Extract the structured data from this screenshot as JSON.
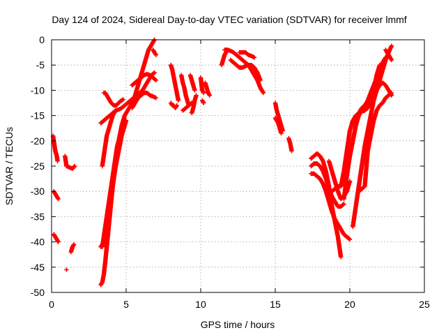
{
  "chart_data": {
    "type": "scatter",
    "title": "Day 124 of 2024, Sidereal Day-to-day VTEC variation (SDTVAR) for receiver lmmf",
    "xlabel": "GPS time / hours",
    "ylabel": "SDTVAR / TECUs",
    "xlim": [
      0,
      25
    ],
    "ylim": [
      -50,
      0
    ],
    "xticks": [
      0,
      5,
      10,
      15,
      20,
      25
    ],
    "yticks": [
      0,
      -5,
      -10,
      -15,
      -20,
      -25,
      -30,
      -35,
      -40,
      -45,
      -50
    ],
    "grid": true,
    "marker": "plus",
    "color": "#ff0000",
    "series": [
      {
        "name": "segment-01",
        "x": [
          0.1,
          0.15,
          0.2,
          0.25,
          0.3,
          0.35,
          0.4
        ],
        "y": [
          -19,
          -20,
          -21,
          -22,
          -22.5,
          -23,
          -24
        ]
      },
      {
        "name": "segment-02",
        "x": [
          0.15,
          0.25,
          0.35,
          0.45
        ],
        "y": [
          -30,
          -30.5,
          -31,
          -31.5
        ]
      },
      {
        "name": "segment-03",
        "x": [
          0.15,
          0.25,
          0.35,
          0.45
        ],
        "y": [
          -38.5,
          -39,
          -39.5,
          -40
        ]
      },
      {
        "name": "segment-04",
        "x": [
          0.9,
          1.0,
          1.4,
          1.55
        ],
        "y": [
          -23,
          -25,
          -25.5,
          -25
        ]
      },
      {
        "name": "segment-05",
        "x": [
          1.0
        ],
        "y": [
          -45.5
        ]
      },
      {
        "name": "segment-06",
        "x": [
          1.3,
          1.4,
          1.5
        ],
        "y": [
          -42,
          -41,
          -40.5
        ]
      },
      {
        "name": "segment-07",
        "x": [
          3.3,
          3.4,
          3.5,
          3.6,
          3.7,
          3.8,
          3.9,
          4.0,
          4.1,
          4.2,
          4.3,
          4.4,
          4.5,
          4.6,
          4.7,
          4.8,
          4.9,
          5.0,
          5.1,
          5.2,
          5.3,
          5.4,
          5.5,
          5.6,
          5.7,
          5.8,
          5.9,
          6.0,
          6.1,
          6.2,
          6.3,
          6.4,
          6.5,
          6.6,
          6.7,
          6.8,
          6.9
        ],
        "y": [
          -48.5,
          -48,
          -46.5,
          -44,
          -41,
          -38,
          -35,
          -32,
          -29,
          -26.5,
          -24,
          -22,
          -20,
          -18.5,
          -17,
          -16,
          -15,
          -14.5,
          -14,
          -13.5,
          -13,
          -12.5,
          -12,
          -11,
          -10,
          -9,
          -8,
          -7,
          -6,
          -5,
          -4,
          -3,
          -2,
          -1.5,
          -1,
          -0.5,
          0
        ]
      },
      {
        "name": "segment-08",
        "x": [
          3.3,
          3.4,
          3.5,
          3.6,
          3.7,
          3.8,
          3.9,
          4.0,
          4.1,
          4.2,
          4.3,
          4.4,
          4.5,
          4.6,
          4.7,
          4.8,
          4.9,
          5.0
        ],
        "y": [
          -41,
          -40.5,
          -40,
          -39,
          -37,
          -35,
          -33,
          -31,
          -29,
          -27,
          -25,
          -23.5,
          -22,
          -20.5,
          -19,
          -18,
          -17,
          -16
        ]
      },
      {
        "name": "segment-09",
        "x": [
          3.4,
          3.5,
          3.6,
          3.7,
          3.8,
          3.9,
          4.0,
          4.1,
          4.2,
          4.3,
          4.4,
          4.5
        ],
        "y": [
          -41,
          -39,
          -37,
          -35,
          -33,
          -31,
          -29,
          -27,
          -25,
          -23,
          -21,
          -20
        ]
      },
      {
        "name": "segment-10",
        "x": [
          3.4,
          3.5,
          3.6,
          3.7,
          3.8,
          3.9,
          4.0,
          4.1,
          4.2,
          4.3
        ],
        "y": [
          -25,
          -23,
          -21,
          -19,
          -18,
          -17,
          -16,
          -15,
          -14.5,
          -14
        ]
      },
      {
        "name": "segment-11",
        "x": [
          3.3,
          3.5,
          3.7,
          3.9,
          4.1,
          4.3,
          4.5,
          4.7,
          4.9,
          5.1,
          5.3,
          5.5,
          5.7,
          5.9,
          6.1,
          6.3,
          6.5,
          6.7,
          6.9
        ],
        "y": [
          -16.5,
          -16,
          -15.5,
          -15,
          -14.5,
          -14,
          -13.8,
          -13.5,
          -13,
          -12.5,
          -12,
          -11.5,
          -11,
          -10.5,
          -10,
          -9,
          -8,
          -7,
          -6.5
        ]
      },
      {
        "name": "segment-12",
        "x": [
          3.5,
          3.6,
          3.7,
          3.8,
          3.9,
          4.0,
          4.1,
          4.2,
          4.3,
          4.4,
          4.5,
          4.6,
          4.7,
          4.8
        ],
        "y": [
          -10.5,
          -10.5,
          -11,
          -11.5,
          -12,
          -12.5,
          -12.8,
          -13,
          -13,
          -12.8,
          -12.5,
          -12.2,
          -12,
          -11.8
        ]
      },
      {
        "name": "segment-13",
        "x": [
          5.4,
          5.6,
          5.8,
          6.0,
          6.2,
          6.4,
          6.6,
          6.8,
          7.0
        ],
        "y": [
          -9,
          -8.5,
          -8,
          -7.5,
          -7,
          -6.8,
          -7,
          -7.5,
          -8
        ]
      },
      {
        "name": "segment-14",
        "x": [
          5.4,
          5.6,
          5.8,
          6.0,
          6.2,
          6.4,
          6.6,
          6.8,
          7.0
        ],
        "y": [
          -13.5,
          -12.5,
          -11.5,
          -11,
          -10.5,
          -10.5,
          -11,
          -11.2,
          -11.5
        ]
      },
      {
        "name": "segment-15",
        "x": [
          6.8,
          6.9,
          7.0
        ],
        "y": [
          -2,
          -2.5,
          -3
        ]
      },
      {
        "name": "segment-16",
        "x": [
          8.0,
          8.1,
          8.2,
          8.3,
          8.4,
          8.5
        ],
        "y": [
          -5,
          -6,
          -7.5,
          -9,
          -10.5,
          -12
        ]
      },
      {
        "name": "segment-17",
        "x": [
          8.0,
          8.1,
          8.2,
          8.3,
          8.4
        ],
        "y": [
          -12.5,
          -13,
          -13,
          -13.5,
          -13
        ]
      },
      {
        "name": "segment-18",
        "x": [
          8.7,
          8.8,
          8.9,
          9.0,
          9.1,
          9.2
        ],
        "y": [
          -7,
          -8.5,
          -9.5,
          -11,
          -12,
          -13
        ]
      },
      {
        "name": "segment-19",
        "x": [
          8.8,
          9.0,
          9.2,
          9.4
        ],
        "y": [
          -14,
          -13.5,
          -13,
          -12.5
        ]
      },
      {
        "name": "segment-20",
        "x": [
          9.3,
          9.4,
          9.5,
          9.6
        ],
        "y": [
          -7,
          -8,
          -9,
          -10
        ]
      },
      {
        "name": "segment-21",
        "x": [
          9.4,
          9.5,
          9.6,
          9.7
        ],
        "y": [
          -14.5,
          -13.5,
          -12,
          -11
        ]
      },
      {
        "name": "segment-22",
        "x": [
          10.0,
          10.1,
          10.2
        ],
        "y": [
          -7.5,
          -10,
          -10.5
        ]
      },
      {
        "name": "segment-23",
        "x": [
          10.3,
          10.4,
          10.5,
          10.6
        ],
        "y": [
          -8.5,
          -9.5,
          -10.5,
          -11
        ]
      },
      {
        "name": "segment-24",
        "x": [
          10.1,
          10.2
        ],
        "y": [
          -12,
          -12.5
        ]
      },
      {
        "name": "segment-25",
        "x": [
          11.4,
          11.5,
          11.6,
          11.7,
          11.8
        ],
        "y": [
          -5,
          -4,
          -3,
          -2.5,
          -2
        ]
      },
      {
        "name": "segment-26",
        "x": [
          11.6,
          11.8,
          12.0,
          12.2,
          12.4,
          12.6,
          12.8,
          13.0,
          13.2,
          13.4,
          13.6,
          13.8,
          14.0,
          14.2
        ],
        "y": [
          -2,
          -2,
          -2.2,
          -2.5,
          -3,
          -3.5,
          -4,
          -4.5,
          -5,
          -6,
          -7,
          -8,
          -9.5,
          -10.5
        ]
      },
      {
        "name": "segment-27",
        "x": [
          12.0,
          12.2,
          12.4,
          12.6,
          12.8,
          13.0,
          13.2,
          13.4,
          13.6,
          13.8,
          14.0
        ],
        "y": [
          -4,
          -4.5,
          -5,
          -5.5,
          -5.5,
          -5.2,
          -5,
          -5,
          -5.5,
          -6.5,
          -8
        ]
      },
      {
        "name": "segment-28",
        "x": [
          12.6,
          12.8,
          13.0,
          13.2,
          13.4,
          13.6
        ],
        "y": [
          -2.5,
          -2.5,
          -2.5,
          -3,
          -3.2,
          -3.5
        ]
      },
      {
        "name": "segment-29",
        "x": [
          15.0,
          15.1,
          15.2,
          15.3,
          15.4,
          15.5
        ],
        "y": [
          -12.5,
          -14,
          -15,
          -16,
          -17,
          -18
        ]
      },
      {
        "name": "segment-30",
        "x": [
          15.0,
          15.1,
          15.2,
          15.3,
          15.4
        ],
        "y": [
          -15.5,
          -16,
          -16.5,
          -17.5,
          -18.5
        ]
      },
      {
        "name": "segment-31",
        "x": [
          15.9,
          16.0,
          16.1
        ],
        "y": [
          -19.5,
          -20.5,
          -22
        ]
      },
      {
        "name": "segment-32",
        "x": [
          17.4,
          17.6,
          17.8,
          18.0,
          18.2,
          18.4,
          18.6,
          18.8,
          19.0,
          19.2,
          19.4
        ],
        "y": [
          -23.5,
          -23,
          -22.5,
          -23,
          -24,
          -26,
          -29,
          -33,
          -36,
          -39,
          -43
        ]
      },
      {
        "name": "segment-33",
        "x": [
          17.4,
          17.6,
          17.8,
          18.0,
          18.2,
          18.4,
          18.6,
          18.8,
          19.0,
          19.2,
          19.4,
          19.6
        ],
        "y": [
          -25,
          -24.5,
          -24.5,
          -25,
          -26,
          -27.5,
          -29.5,
          -31,
          -32,
          -33,
          -33,
          -32.5
        ]
      },
      {
        "name": "segment-34",
        "x": [
          17.4,
          17.6,
          17.8,
          18.0,
          18.2,
          18.4,
          18.6,
          18.8,
          19.0,
          19.2,
          19.4,
          19.6,
          19.8,
          20.0
        ],
        "y": [
          -26.5,
          -26.5,
          -27,
          -27.5,
          -28.5,
          -30,
          -32,
          -34,
          -35.5,
          -36.5,
          -37.5,
          -38.5,
          -39,
          -39.5
        ]
      },
      {
        "name": "segment-35",
        "x": [
          18.6,
          18.8,
          19.0,
          19.2,
          19.4,
          19.6,
          19.8,
          20.0
        ],
        "y": [
          -24,
          -26,
          -28,
          -30,
          -31.5,
          -31,
          -30,
          -28
        ]
      },
      {
        "name": "segment-36",
        "x": [
          18.8,
          19.0,
          19.2,
          19.4,
          19.6,
          19.8,
          20.0,
          20.2,
          20.4,
          20.6,
          20.8,
          21.0,
          21.2,
          21.4,
          21.6,
          21.8,
          22.0,
          22.2,
          22.4
        ],
        "y": [
          -30,
          -29.5,
          -29,
          -29,
          -28,
          -26,
          -23,
          -20,
          -17,
          -14.5,
          -13.5,
          -13,
          -12,
          -10.5,
          -9,
          -7.5,
          -6,
          -4.5,
          -3.5
        ]
      },
      {
        "name": "segment-37",
        "x": [
          19.4,
          19.6,
          19.8,
          20.0,
          20.2,
          20.4,
          20.6,
          20.8,
          21.0,
          21.2,
          21.4,
          21.6,
          21.8,
          22.0
        ],
        "y": [
          -29,
          -26,
          -22,
          -18,
          -16,
          -15,
          -14.5,
          -14.2,
          -14,
          -13.5,
          -12,
          -10,
          -7,
          -5
        ]
      },
      {
        "name": "segment-38",
        "x": [
          19.6,
          19.8,
          20.0,
          20.2,
          20.4,
          20.6,
          20.8,
          21.0,
          21.2,
          21.4,
          21.6,
          21.8,
          22.0
        ],
        "y": [
          -31.5,
          -27,
          -23,
          -20,
          -17,
          -15,
          -14,
          -13.5,
          -13,
          -12,
          -11,
          -10,
          -9
        ]
      },
      {
        "name": "segment-39",
        "x": [
          20.2,
          20.4,
          20.6,
          20.8,
          21.0,
          21.2,
          21.4,
          21.6,
          21.8,
          22.0,
          22.2,
          22.4,
          22.6,
          22.8
        ],
        "y": [
          -37,
          -33,
          -29,
          -25,
          -21,
          -18,
          -15,
          -12,
          -10,
          -8,
          -6,
          -4,
          -2.5,
          -1.2
        ]
      },
      {
        "name": "segment-40",
        "x": [
          20.6,
          20.8,
          21.0,
          21.2,
          21.4,
          21.6,
          21.8,
          22.0,
          22.2,
          22.4,
          22.6,
          22.8
        ],
        "y": [
          -30,
          -29.5,
          -29,
          -22,
          -19,
          -16,
          -14,
          -13,
          -12.5,
          -11.5,
          -11,
          -10.5
        ]
      },
      {
        "name": "segment-41",
        "x": [
          21.6,
          21.8,
          22.0,
          22.2,
          22.4,
          22.6,
          22.8
        ],
        "y": [
          -10,
          -9.5,
          -9,
          -8.5,
          -9,
          -10,
          -11
        ]
      },
      {
        "name": "segment-42",
        "x": [
          22.4,
          22.5,
          22.6,
          22.7,
          22.8
        ],
        "y": [
          -2,
          -2.5,
          -3,
          -3.5,
          -4
        ]
      }
    ]
  }
}
